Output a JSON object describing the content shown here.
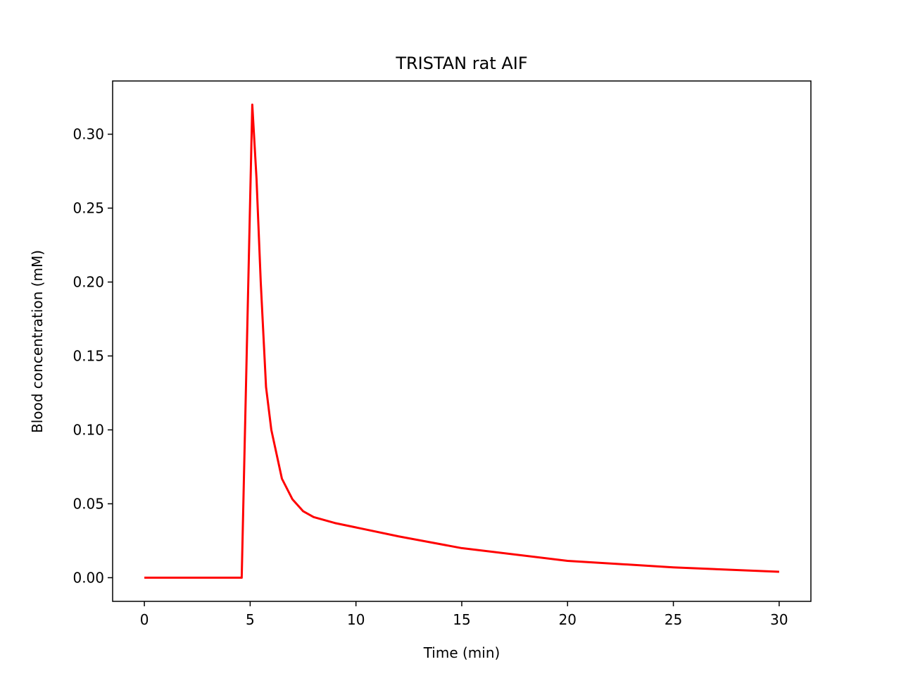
{
  "chart_data": {
    "type": "line",
    "title": "TRISTAN rat AIF",
    "xlabel": "Time (min)",
    "ylabel": "Blood concentration (mM)",
    "x": [
      0,
      4.6,
      5.1,
      5.3,
      5.5,
      5.75,
      6,
      6.5,
      7,
      7.5,
      8,
      9,
      10,
      12,
      15,
      20,
      25,
      30
    ],
    "series": [
      {
        "name": "AIF",
        "color": "#ff0000",
        "values": [
          0,
          0,
          0.32,
          0.27,
          0.2,
          0.129,
          0.1,
          0.067,
          0.053,
          0.045,
          0.041,
          0.037,
          0.034,
          0.028,
          0.02,
          0.0114,
          0.007,
          0.004
        ]
      }
    ],
    "xlim": [
      -1.5,
      31.5
    ],
    "xticks": [
      0,
      5,
      10,
      15,
      20,
      25,
      30
    ],
    "ylim": [
      -0.016,
      0.336
    ],
    "yticks": [
      {
        "value": 0,
        "label": "0.00"
      },
      {
        "value": 0.05,
        "label": "0.05"
      },
      {
        "value": 0.1,
        "label": "0.10"
      },
      {
        "value": 0.15,
        "label": "0.15"
      },
      {
        "value": 0.2,
        "label": "0.20"
      },
      {
        "value": 0.25,
        "label": "0.25"
      },
      {
        "value": 0.3,
        "label": "0.30"
      }
    ]
  }
}
